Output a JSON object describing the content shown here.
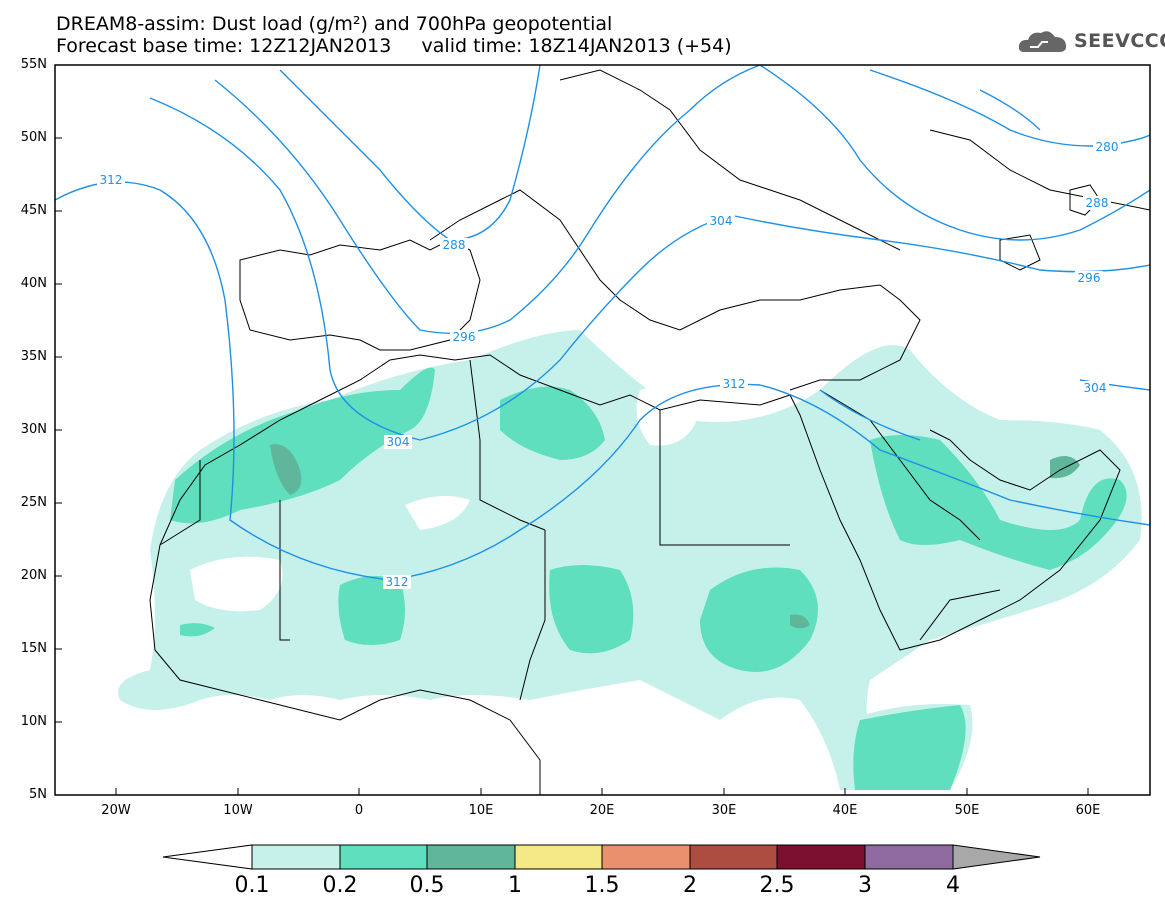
{
  "header": {
    "title_line1": "DREAM8-assim: Dust load (g/m²) and 700hPa geopotential",
    "title_line2": "Forecast base time: 12Z12JAN2013     valid time: 18Z14JAN2013 (+54)",
    "logo_text": "SEEVCCC"
  },
  "axes": {
    "lat_labels": [
      "55N",
      "50N",
      "45N",
      "40N",
      "35N",
      "30N",
      "25N",
      "20N",
      "15N",
      "10N",
      "5N"
    ],
    "lon_labels": [
      "20W",
      "10W",
      "0",
      "10E",
      "20E",
      "30E",
      "40E",
      "50E",
      "60E"
    ]
  },
  "contour_labels": [
    "312",
    "288",
    "296",
    "304",
    "312",
    "280",
    "288",
    "296",
    "304",
    "312"
  ],
  "colorbar": {
    "labels": [
      "0.1",
      "0.2",
      "0.5",
      "1",
      "1.5",
      "2",
      "2.5",
      "3",
      "4"
    ],
    "colors": [
      "#c6f1ea",
      "#5fdfbd",
      "#5fb69b",
      "#f5e987",
      "#e9906d",
      "#ad4d42",
      "#7b0f2e",
      "#8f6aa0",
      "#a8a8a8"
    ]
  },
  "colors": {
    "dust_light": "#c6f1ea",
    "dust_mid": "#5fdfbd",
    "dust_dark": "#5fb69b",
    "contour": "#1e90e6"
  }
}
